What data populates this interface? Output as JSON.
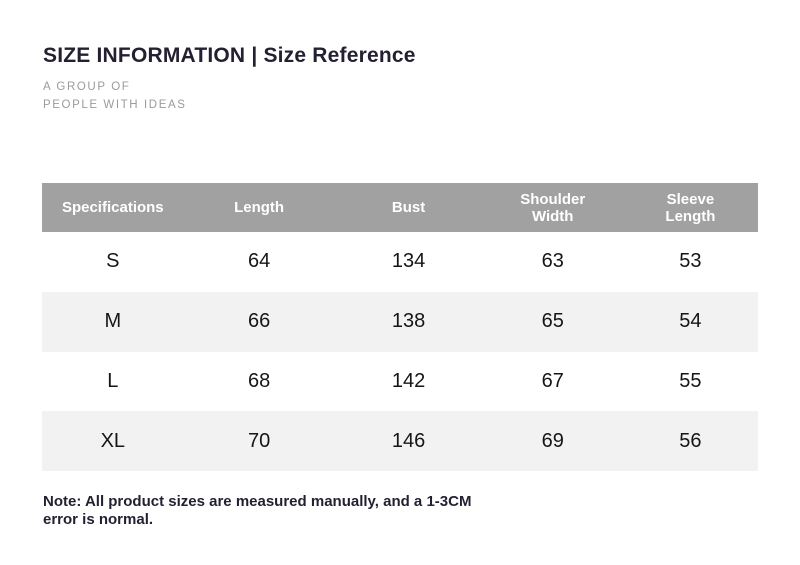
{
  "header": {
    "title": "SIZE INFORMATION | Size Reference",
    "tagline_line1": "A GROUP OF",
    "tagline_line2": "PEOPLE WITH IDEAS"
  },
  "chart_data": {
    "type": "table",
    "title": "SIZE INFORMATION | Size Reference",
    "columns": [
      "Specifications",
      "Length",
      "Bust",
      "Shoulder Width",
      "Sleeve Length"
    ],
    "rows": [
      [
        "S",
        "64",
        "134",
        "63",
        "53"
      ],
      [
        "M",
        "66",
        "138",
        "65",
        "54"
      ],
      [
        "L",
        "68",
        "142",
        "67",
        "55"
      ],
      [
        "XL",
        "70",
        "146",
        "69",
        "56"
      ]
    ],
    "layout": {
      "header_background": "#a1a1a1",
      "alternate_row_background": "#f2f2f2",
      "row_background": "#ffffff",
      "grid": "none"
    }
  },
  "note": {
    "text": "Note: All product sizes are measured manually, and a 1-3CM error is normal."
  },
  "colors": {
    "title_text": "#241f31",
    "tagline_text": "#9b9b9b",
    "table_header_bg": "#a1a1a1",
    "table_header_text": "#ffffff",
    "table_alt_row_bg": "#f2f2f2",
    "table_cell_text": "#161616",
    "note_text": "#241f31",
    "page_bg": "#ffffff"
  }
}
